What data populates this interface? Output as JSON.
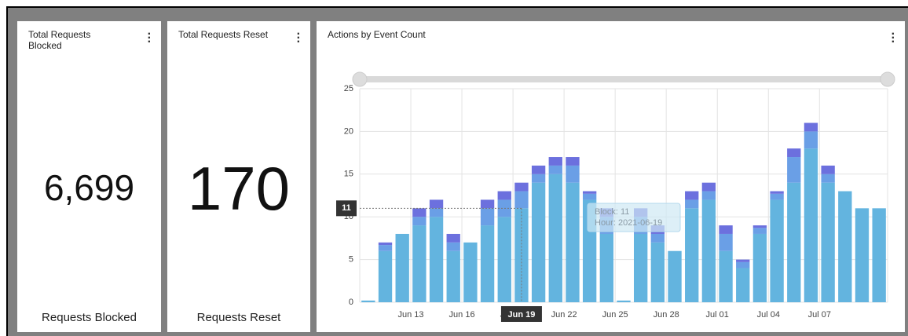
{
  "cards": [
    {
      "title": "Total Requests Blocked",
      "value": "6,699",
      "caption": "Requests Blocked"
    },
    {
      "title": "Total Requests Reset",
      "value": "170",
      "caption": "Requests Reset"
    }
  ],
  "chart_data": {
    "type": "bar",
    "stacked": true,
    "title": "Actions by Event Count",
    "categories": [
      null,
      null,
      null,
      "Jun 13",
      null,
      null,
      "Jun 16",
      null,
      null,
      "Jun 19",
      null,
      null,
      "Jun 22",
      null,
      null,
      "Jun 25",
      null,
      null,
      "Jun 28",
      null,
      null,
      "Jul 01",
      null,
      null,
      "Jul 04",
      null,
      null,
      "Jul 07",
      null,
      null,
      null
    ],
    "series": [
      {
        "color": "#63b4df",
        "values": [
          0.2,
          6,
          8,
          9,
          10,
          6,
          7,
          9,
          10,
          11,
          14,
          15,
          14,
          12,
          8,
          0.2,
          8,
          7,
          6,
          11,
          12,
          6,
          4,
          8,
          12,
          14,
          18,
          14,
          13,
          11,
          11
        ]
      },
      {
        "color": "#6a9fe6",
        "values": [
          0,
          0.7,
          0,
          1,
          1,
          1,
          0,
          2,
          2,
          2,
          1,
          1,
          2,
          0.7,
          2,
          0,
          2,
          1,
          0,
          1,
          1,
          2,
          0.7,
          0.7,
          0.7,
          3,
          2,
          1,
          0,
          0,
          0
        ]
      },
      {
        "color": "#6c70de",
        "values": [
          0,
          0.3,
          0,
          1,
          1,
          1,
          0,
          1,
          1,
          1,
          1,
          1,
          1,
          0.3,
          1,
          0,
          1,
          1,
          0,
          1,
          1,
          1,
          0.3,
          0.3,
          0.3,
          1,
          1,
          1,
          0,
          0,
          0
        ]
      }
    ],
    "ylim": [
      0,
      25
    ],
    "yticks": [
      0,
      5,
      10,
      15,
      20,
      25
    ],
    "grid": true,
    "tooltip": {
      "lines": [
        "Block: 11",
        "Hour: 2021-06-19"
      ],
      "y_value": 11,
      "y_label": "11",
      "x_label": "Jun 19"
    }
  }
}
